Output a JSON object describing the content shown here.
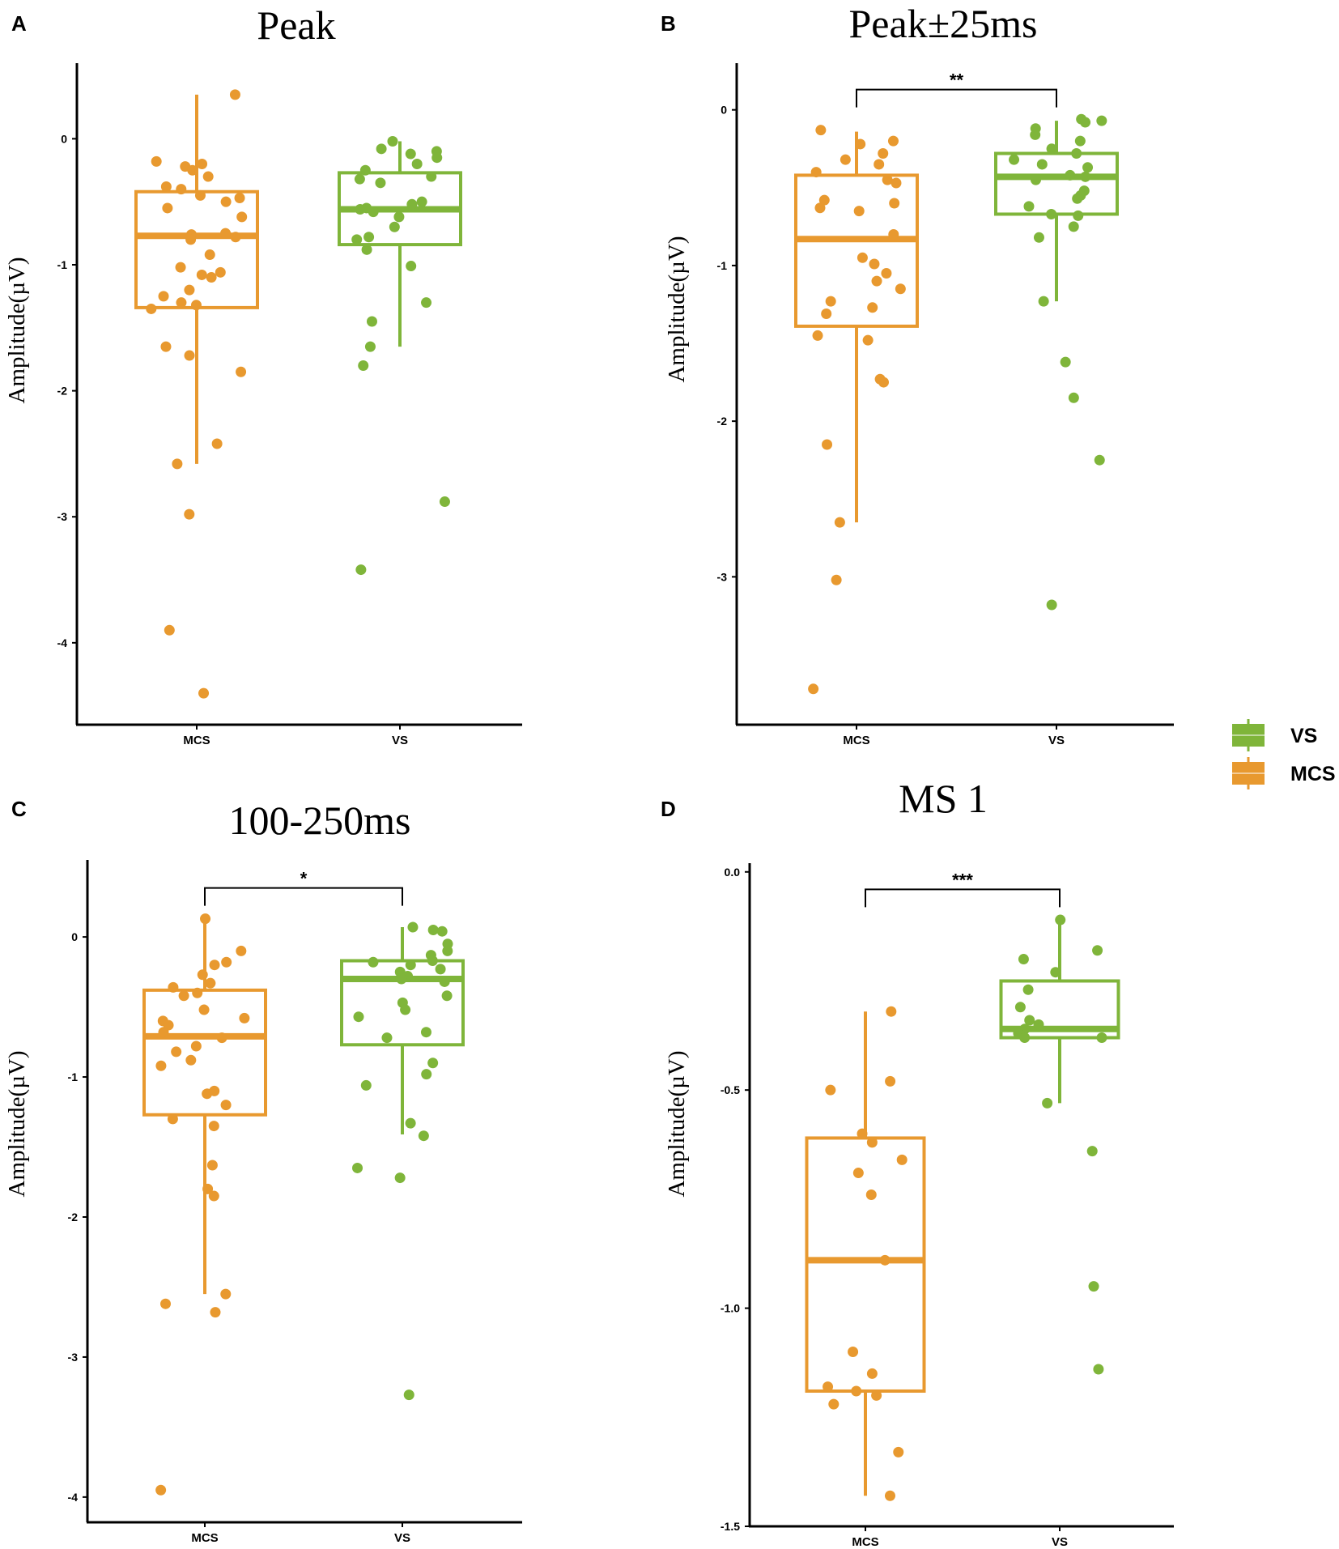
{
  "colors": {
    "MCS": "#E8992F",
    "VS": "#7FB53A",
    "axis": "#000000"
  },
  "legend": [
    {
      "label": "VS",
      "color_key": "VS"
    },
    {
      "label": "MCS",
      "color_key": "MCS"
    }
  ],
  "chart_data": [
    {
      "panel": "A",
      "type": "box",
      "title": "Peak",
      "ylabel": "Amplitude(µV)",
      "xlabel": "",
      "ylim": [
        -4.65,
        0.6
      ],
      "yticks": [
        0,
        -1,
        -2,
        -3,
        -4
      ],
      "categories": [
        "MCS",
        "VS"
      ],
      "boxes": [
        {
          "group": "MCS",
          "q1": -1.34,
          "median": -0.77,
          "q3": -0.42,
          "whisker_low": -2.58,
          "whisker_high": 0.35
        },
        {
          "group": "VS",
          "q1": -0.84,
          "median": -0.56,
          "q3": -0.27,
          "whisker_low": -1.65,
          "whisker_high": -0.02
        }
      ],
      "points": {
        "MCS": [
          0.35,
          -0.18,
          -0.2,
          -0.22,
          -0.25,
          -0.3,
          -0.38,
          -0.4,
          -0.45,
          -0.47,
          -0.5,
          -0.55,
          -0.62,
          -0.75,
          -0.76,
          -0.78,
          -0.8,
          -0.92,
          -1.02,
          -1.06,
          -1.08,
          -1.1,
          -1.2,
          -1.25,
          -1.3,
          -1.32,
          -1.35,
          -1.65,
          -1.72,
          -1.85,
          -2.42,
          -2.58,
          -2.98,
          -3.9,
          -4.4
        ],
        "VS": [
          -0.02,
          -0.08,
          -0.1,
          -0.12,
          -0.15,
          -0.2,
          -0.25,
          -0.3,
          -0.32,
          -0.35,
          -0.5,
          -0.52,
          -0.55,
          -0.56,
          -0.58,
          -0.62,
          -0.7,
          -0.78,
          -0.8,
          -0.88,
          -1.01,
          -1.3,
          -1.45,
          -1.65,
          -1.8,
          -2.88,
          -3.42
        ]
      },
      "significance": null
    },
    {
      "panel": "B",
      "type": "box",
      "title": "Peak±25ms",
      "ylabel": "Amplitude(µV)",
      "xlabel": "",
      "ylim": [
        -3.95,
        0.3
      ],
      "yticks": [
        0,
        -1,
        -2,
        -3
      ],
      "categories": [
        "MCS",
        "VS"
      ],
      "boxes": [
        {
          "group": "MCS",
          "q1": -1.39,
          "median": -0.83,
          "q3": -0.42,
          "whisker_low": -2.65,
          "whisker_high": -0.14
        },
        {
          "group": "VS",
          "q1": -0.67,
          "median": -0.43,
          "q3": -0.28,
          "whisker_low": -1.23,
          "whisker_high": -0.07
        }
      ],
      "points": {
        "MCS": [
          -0.13,
          -0.2,
          -0.22,
          -0.28,
          -0.32,
          -0.35,
          -0.4,
          -0.45,
          -0.47,
          -0.58,
          -0.6,
          -0.63,
          -0.65,
          -0.8,
          -0.95,
          -0.99,
          -1.05,
          -1.1,
          -1.15,
          -1.23,
          -1.27,
          -1.31,
          -1.45,
          -1.48,
          -1.73,
          -1.75,
          -2.15,
          -2.65,
          -3.02,
          -3.72
        ],
        "VS": [
          -0.06,
          -0.07,
          -0.08,
          -0.12,
          -0.16,
          -0.2,
          -0.25,
          -0.28,
          -0.32,
          -0.35,
          -0.37,
          -0.42,
          -0.43,
          -0.45,
          -0.52,
          -0.55,
          -0.57,
          -0.62,
          -0.67,
          -0.68,
          -0.75,
          -0.82,
          -1.23,
          -1.62,
          -1.85,
          -2.25,
          -3.18
        ]
      },
      "significance": {
        "label": "**",
        "bracket_y": 0.13
      }
    },
    {
      "panel": "C",
      "type": "box",
      "title": "100-250ms",
      "ylabel": "Amplitude(µV)",
      "xlabel": "",
      "ylim": [
        -4.18,
        0.55
      ],
      "yticks": [
        0,
        -1,
        -2,
        -3,
        -4
      ],
      "categories": [
        "MCS",
        "VS"
      ],
      "boxes": [
        {
          "group": "MCS",
          "q1": -1.27,
          "median": -0.71,
          "q3": -0.38,
          "whisker_low": -2.55,
          "whisker_high": 0.13
        },
        {
          "group": "VS",
          "q1": -0.77,
          "median": -0.3,
          "q3": -0.17,
          "whisker_low": -1.41,
          "whisker_high": 0.07
        }
      ],
      "points": {
        "MCS": [
          0.13,
          -0.1,
          -0.18,
          -0.2,
          -0.27,
          -0.33,
          -0.36,
          -0.4,
          -0.42,
          -0.52,
          -0.58,
          -0.6,
          -0.63,
          -0.68,
          -0.72,
          -0.78,
          -0.82,
          -0.88,
          -0.92,
          -1.1,
          -1.12,
          -1.2,
          -1.3,
          -1.35,
          -1.63,
          -1.8,
          -1.85,
          -2.55,
          -2.62,
          -2.68,
          -3.95
        ],
        "VS": [
          0.07,
          0.05,
          0.04,
          -0.05,
          -0.1,
          -0.13,
          -0.17,
          -0.18,
          -0.2,
          -0.23,
          -0.25,
          -0.28,
          -0.3,
          -0.32,
          -0.42,
          -0.47,
          -0.52,
          -0.57,
          -0.68,
          -0.72,
          -0.9,
          -0.98,
          -1.06,
          -1.33,
          -1.42,
          -1.65,
          -1.72,
          -3.27
        ]
      },
      "significance": {
        "label": "*",
        "bracket_y": 0.35
      }
    },
    {
      "panel": "D",
      "type": "box",
      "title": "MS 1",
      "ylabel": "Amplitude(µV)",
      "xlabel": "",
      "ylim": [
        -1.5,
        0.02
      ],
      "yticks": [
        0.0,
        -0.5,
        -1.0,
        -1.5
      ],
      "categories": [
        "MCS",
        "VS"
      ],
      "boxes": [
        {
          "group": "MCS",
          "q1": -1.19,
          "median": -0.89,
          "q3": -0.61,
          "whisker_low": -1.43,
          "whisker_high": -0.32
        },
        {
          "group": "VS",
          "q1": -0.38,
          "median": -0.36,
          "q3": -0.25,
          "whisker_low": -0.53,
          "whisker_high": -0.11
        }
      ],
      "points": {
        "MCS": [
          -0.32,
          -0.48,
          -0.5,
          -0.6,
          -0.62,
          -0.66,
          -0.69,
          -0.74,
          -0.89,
          -1.1,
          -1.15,
          -1.18,
          -1.19,
          -1.2,
          -1.22,
          -1.33,
          -1.43
        ],
        "VS": [
          -0.11,
          -0.18,
          -0.2,
          -0.23,
          -0.27,
          -0.31,
          -0.34,
          -0.35,
          -0.36,
          -0.37,
          -0.38,
          -0.38,
          -0.53,
          -0.64,
          -0.95,
          -1.14
        ]
      },
      "significance": {
        "label": "***",
        "bracket_y": -0.04
      }
    }
  ]
}
